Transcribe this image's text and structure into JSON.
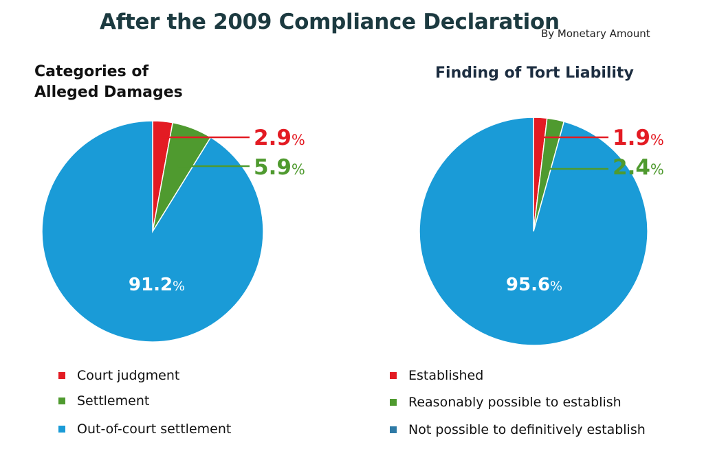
{
  "title": "After the 2009 Compliance Declaration",
  "subtitle": "By Monetary Amount",
  "colors": {
    "red": "#e31b23",
    "green": "#4f9a2f",
    "blue": "#1a9bd7",
    "steel": "#2e7aa6"
  },
  "chart_data": [
    {
      "type": "pie",
      "title": "Categories of Alleged Damages",
      "slices": [
        {
          "label": "Court judgment",
          "value": 2.9,
          "display": "2.9",
          "color": "#e31b23"
        },
        {
          "label": "Settlement",
          "value": 5.9,
          "display": "5.9",
          "color": "#4f9a2f"
        },
        {
          "label": "Out-of-court settlement",
          "value": 91.2,
          "display": "91.2",
          "color": "#1a9bd7"
        }
      ],
      "unit": "%",
      "legend": [
        {
          "label": "Court judgment",
          "color": "#e31b23"
        },
        {
          "label": "Settlement",
          "color": "#4f9a2f"
        },
        {
          "label": "Out-of-court settlement",
          "color": "#1a9bd7"
        }
      ]
    },
    {
      "type": "pie",
      "title": "Finding of Tort Liability",
      "slices": [
        {
          "label": "Established",
          "value": 1.9,
          "display": "1.9",
          "color": "#e31b23"
        },
        {
          "label": "Reasonably possible to establish",
          "value": 2.4,
          "display": "2.4",
          "color": "#4f9a2f"
        },
        {
          "label": "Not possible to definitively establish",
          "value": 95.6,
          "display": "95.6",
          "color": "#1a9bd7"
        }
      ],
      "unit": "%",
      "legend": [
        {
          "label": "Established",
          "color": "#e31b23"
        },
        {
          "label": "Reasonably possible to establish",
          "color": "#4f9a2f"
        },
        {
          "label": "Not possible to definitively establish",
          "color": "#2e7aa6"
        }
      ]
    }
  ]
}
